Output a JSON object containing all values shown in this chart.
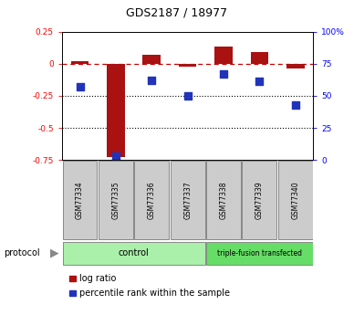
{
  "title": "GDS2187 / 18977",
  "samples": [
    "GSM77334",
    "GSM77335",
    "GSM77336",
    "GSM77337",
    "GSM77338",
    "GSM77339",
    "GSM77340"
  ],
  "log_ratio": [
    0.02,
    -0.73,
    0.07,
    -0.02,
    0.13,
    0.09,
    -0.04
  ],
  "percentile_rank": [
    57,
    3,
    62,
    50,
    67,
    61,
    43
  ],
  "bar_color": "#aa1111",
  "dot_color": "#2233bb",
  "dashed_line_color": "#cc0000",
  "control_color": "#aaf0aa",
  "triple_color": "#66dd66",
  "sample_box_color": "#cccccc",
  "control_label": "control",
  "triple_label": "triple-fusion transfected",
  "protocol_label": "protocol",
  "legend_log_ratio": "log ratio",
  "legend_percentile": "percentile rank within the sample",
  "fig_width": 3.88,
  "fig_height": 3.45,
  "dpi": 100
}
